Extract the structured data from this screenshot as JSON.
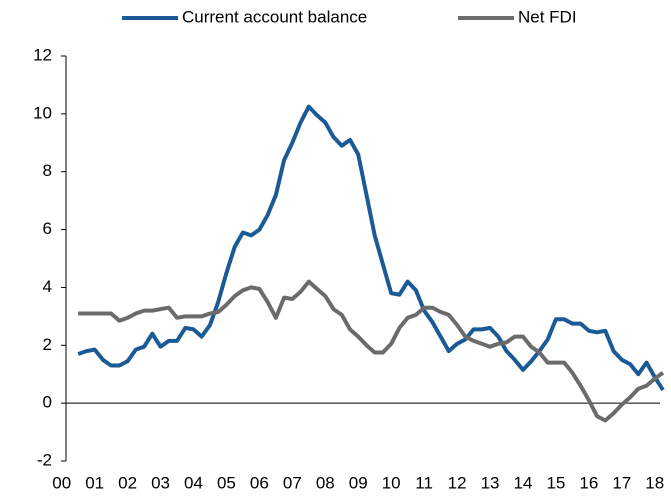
{
  "chart_data": {
    "type": "line",
    "x": [
      0.5,
      0.75,
      1,
      1.25,
      1.5,
      1.75,
      2,
      2.25,
      2.5,
      2.75,
      3,
      3.25,
      3.5,
      3.75,
      4,
      4.25,
      4.5,
      4.75,
      5,
      5.25,
      5.5,
      5.75,
      6,
      6.25,
      6.5,
      6.75,
      7,
      7.25,
      7.5,
      7.75,
      8,
      8.25,
      8.5,
      8.75,
      9,
      9.25,
      9.5,
      9.75,
      10,
      10.25,
      10.5,
      10.75,
      11,
      11.25,
      11.5,
      11.75,
      12,
      12.25,
      12.5,
      12.75,
      13,
      13.25,
      13.5,
      13.75,
      14,
      14.25,
      14.5,
      14.75,
      15,
      15.25,
      15.5,
      15.75,
      16,
      16.25,
      16.5,
      16.75,
      17,
      17.25,
      17.5,
      17.75,
      18,
      18.25
    ],
    "series": [
      {
        "name": "Current account balance",
        "color": "#1a5a96",
        "values": [
          1.7,
          1.8,
          1.85,
          1.5,
          1.3,
          1.3,
          1.45,
          1.85,
          1.95,
          2.4,
          1.95,
          2.15,
          2.15,
          2.6,
          2.55,
          2.3,
          2.7,
          3.5,
          4.5,
          5.4,
          5.9,
          5.8,
          6.0,
          6.5,
          7.2,
          8.4,
          9.0,
          9.7,
          10.25,
          9.95,
          9.7,
          9.2,
          8.9,
          9.1,
          8.6,
          7.2,
          5.8,
          4.8,
          3.8,
          3.75,
          4.2,
          3.9,
          3.2,
          2.8,
          2.3,
          1.8,
          2.05,
          2.2,
          2.55,
          2.55,
          2.6,
          2.3,
          1.8,
          1.5,
          1.15,
          1.45,
          1.8,
          2.2,
          2.9,
          2.9,
          2.75,
          2.75,
          2.5,
          2.45,
          2.5,
          1.8,
          1.5,
          1.35,
          1.0,
          1.4,
          0.9,
          0.45
        ]
      },
      {
        "name": "Net FDI",
        "color": "#6b6b6b",
        "values": [
          3.1,
          3.1,
          3.1,
          3.1,
          3.1,
          2.85,
          2.95,
          3.1,
          3.2,
          3.2,
          3.25,
          3.3,
          2.95,
          3.0,
          3.0,
          3.0,
          3.1,
          3.15,
          3.4,
          3.7,
          3.9,
          4.0,
          3.95,
          3.5,
          2.95,
          3.65,
          3.6,
          3.85,
          4.2,
          3.95,
          3.7,
          3.25,
          3.05,
          2.55,
          2.3,
          2.0,
          1.75,
          1.75,
          2.05,
          2.6,
          2.95,
          3.05,
          3.3,
          3.3,
          3.15,
          3.05,
          2.7,
          2.3,
          2.15,
          2.05,
          1.95,
          2.05,
          2.1,
          2.3,
          2.3,
          1.95,
          1.75,
          1.4,
          1.4,
          1.4,
          1.05,
          0.6,
          0.1,
          -0.45,
          -0.6,
          -0.35,
          -0.05,
          0.2,
          0.5,
          0.6,
          0.85,
          1.05
        ]
      }
    ],
    "xlim": [
      0.1,
      18.25
    ],
    "xticks": [
      {
        "value": 0,
        "label": "00"
      },
      {
        "value": 1,
        "label": "01"
      },
      {
        "value": 2,
        "label": "02"
      },
      {
        "value": 3,
        "label": "03"
      },
      {
        "value": 4,
        "label": "04"
      },
      {
        "value": 5,
        "label": "05"
      },
      {
        "value": 6,
        "label": "06"
      },
      {
        "value": 7,
        "label": "07"
      },
      {
        "value": 8,
        "label": "08"
      },
      {
        "value": 9,
        "label": "09"
      },
      {
        "value": 10,
        "label": "10"
      },
      {
        "value": 11,
        "label": "11"
      },
      {
        "value": 12,
        "label": "12"
      },
      {
        "value": 13,
        "label": "13"
      },
      {
        "value": 14,
        "label": "14"
      },
      {
        "value": 15,
        "label": "15"
      },
      {
        "value": 16,
        "label": "16"
      },
      {
        "value": 17,
        "label": "17"
      },
      {
        "value": 18,
        "label": "18"
      }
    ],
    "ylim": [
      -2,
      12
    ],
    "yticks": [
      -2,
      0,
      2,
      4,
      6,
      8,
      10,
      12
    ],
    "grid": false,
    "legend": "top"
  }
}
